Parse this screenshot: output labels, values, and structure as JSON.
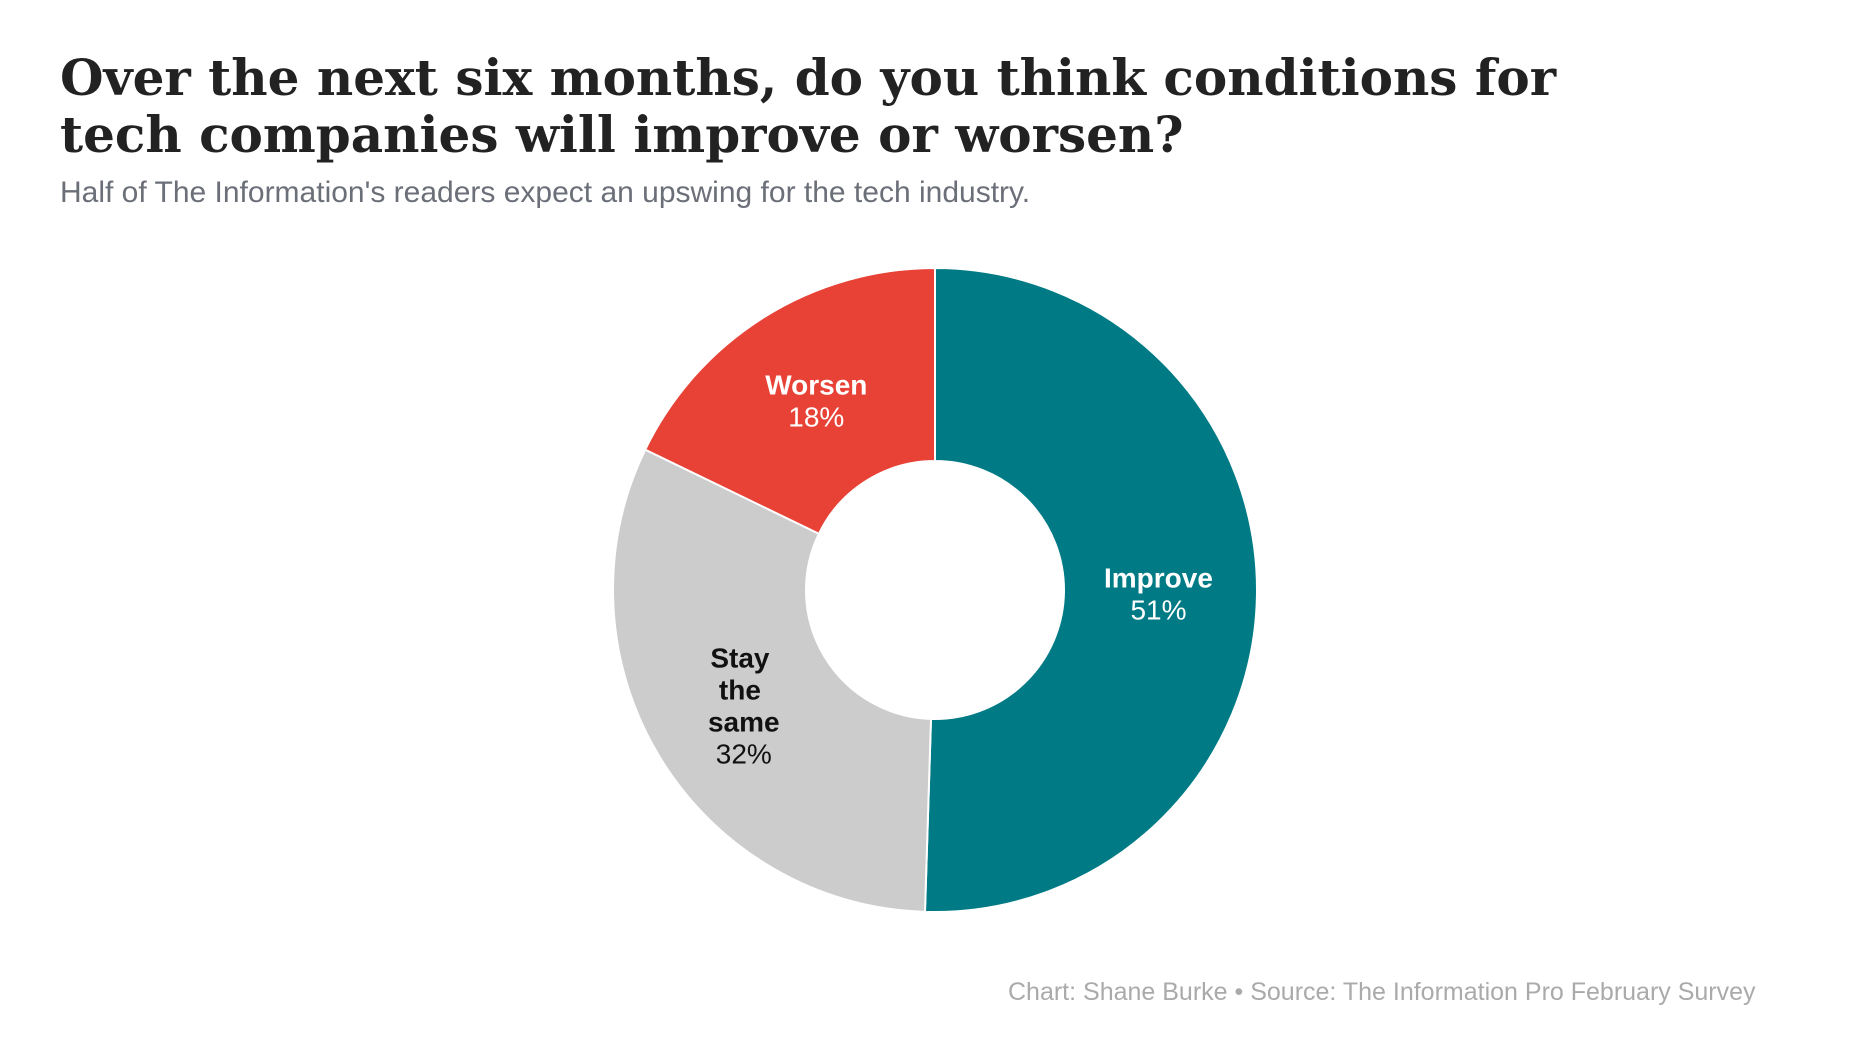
{
  "chart_data": {
    "type": "donut",
    "title": "Over the next six months, do you think conditions for tech companies will improve or worsen?",
    "subtitle": "Half of The Information's readers expect an upswing for the tech industry.",
    "categories": [
      "Improve",
      "Stay the same",
      "Worsen"
    ],
    "values": [
      51,
      32,
      18
    ],
    "value_labels": [
      "51%",
      "32%",
      "18%"
    ],
    "colors": [
      "#007b85",
      "#cccccc",
      "#e84236"
    ],
    "footer": "Chart: Shane Burke • Source: The Information Pro February Survey"
  }
}
